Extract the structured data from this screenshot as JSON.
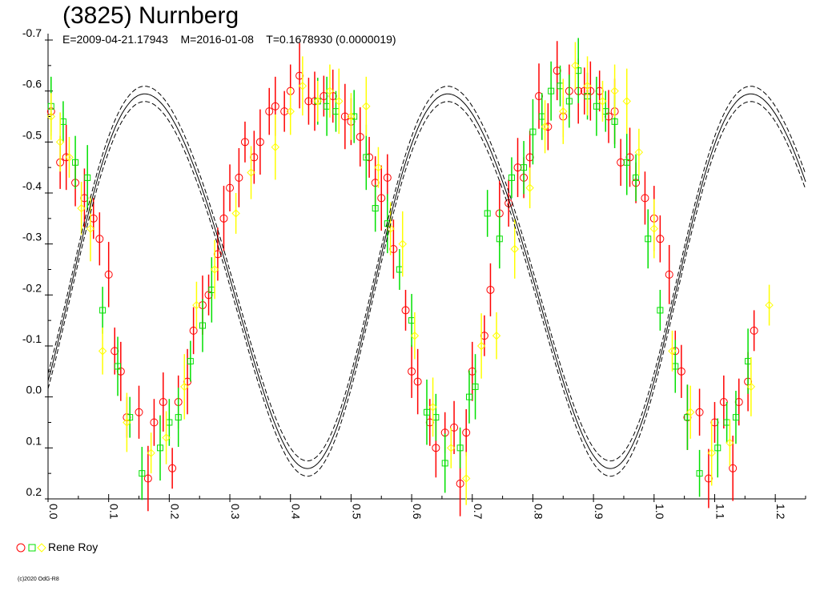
{
  "title": "(3825) Nurnberg",
  "subtitle": "E=2009-04-21.17943    M=2016-01-08    T=0.1678930 (0.0000019)",
  "legend": {
    "label": "Rene Roy"
  },
  "copyright": "(c)2020 OdG-R8",
  "colors": {
    "series1": "#ff0000",
    "series2": "#00e000",
    "series3": "#ffff00",
    "fit": "#000000"
  },
  "chart_data": {
    "type": "scatter",
    "xlim": [
      0.0,
      1.25
    ],
    "ylim": [
      -0.7,
      0.2
    ],
    "y_inverted": true,
    "x_ticks": [
      "0.0",
      "0.1",
      "0.2",
      "0.3",
      "0.4",
      "0.5",
      "0.6",
      "0.7",
      "0.8",
      "0.9",
      "1.0",
      "1.1",
      "1.2"
    ],
    "y_ticks": [
      "-0.7",
      "-0.6",
      "-0.5",
      "-0.4",
      "-0.3",
      "-0.2",
      "-0.1",
      "0.0",
      "0.1",
      "0.2"
    ],
    "series": [
      {
        "marker": "circle",
        "color": "#ff0000",
        "points": [
          [
            0.005,
            -0.56
          ],
          [
            0.02,
            -0.46
          ],
          [
            0.03,
            -0.47
          ],
          [
            0.045,
            -0.42
          ],
          [
            0.06,
            -0.39
          ],
          [
            0.075,
            -0.35
          ],
          [
            0.085,
            -0.31
          ],
          [
            0.1,
            -0.24
          ],
          [
            0.11,
            -0.09
          ],
          [
            0.12,
            -0.05
          ],
          [
            0.13,
            0.04
          ],
          [
            0.15,
            0.03
          ],
          [
            0.165,
            0.16
          ],
          [
            0.175,
            0.05
          ],
          [
            0.19,
            0.01
          ],
          [
            0.205,
            0.14
          ],
          [
            0.215,
            0.01
          ],
          [
            0.23,
            -0.03
          ],
          [
            0.24,
            -0.13
          ],
          [
            0.255,
            -0.18
          ],
          [
            0.265,
            -0.2
          ],
          [
            0.28,
            -0.28
          ],
          [
            0.29,
            -0.35
          ],
          [
            0.3,
            -0.41
          ],
          [
            0.315,
            -0.43
          ],
          [
            0.325,
            -0.5
          ],
          [
            0.34,
            -0.47
          ],
          [
            0.35,
            -0.5
          ],
          [
            0.365,
            -0.56
          ],
          [
            0.375,
            -0.57
          ],
          [
            0.39,
            -0.56
          ],
          [
            0.4,
            -0.6
          ],
          [
            0.415,
            -0.63
          ],
          [
            0.43,
            -0.58
          ],
          [
            0.44,
            -0.58
          ],
          [
            0.455,
            -0.59
          ],
          [
            0.47,
            -0.59
          ],
          [
            0.49,
            -0.55
          ],
          [
            0.5,
            -0.54
          ],
          [
            0.515,
            -0.51
          ],
          [
            0.53,
            -0.47
          ],
          [
            0.54,
            -0.42
          ],
          [
            0.55,
            -0.39
          ],
          [
            0.56,
            -0.43
          ],
          [
            0.57,
            -0.29
          ],
          [
            0.59,
            -0.17
          ],
          [
            0.6,
            -0.05
          ],
          [
            0.61,
            -0.03
          ],
          [
            0.63,
            0.05
          ],
          [
            0.64,
            0.1
          ],
          [
            0.655,
            0.07
          ],
          [
            0.67,
            0.06
          ],
          [
            0.68,
            0.17
          ],
          [
            0.69,
            0.07
          ],
          [
            0.7,
            -0.05
          ],
          [
            0.72,
            -0.12
          ],
          [
            0.73,
            -0.21
          ],
          [
            0.745,
            -0.36
          ],
          [
            0.76,
            -0.38
          ],
          [
            0.775,
            -0.45
          ],
          [
            0.785,
            -0.43
          ],
          [
            0.795,
            -0.47
          ],
          [
            0.81,
            -0.59
          ],
          [
            0.825,
            -0.53
          ],
          [
            0.84,
            -0.64
          ],
          [
            0.85,
            -0.55
          ],
          [
            0.86,
            -0.6
          ],
          [
            0.875,
            -0.6
          ],
          [
            0.885,
            -0.6
          ],
          [
            0.895,
            -0.6
          ],
          [
            0.91,
            -0.6
          ],
          [
            0.925,
            -0.55
          ],
          [
            0.935,
            -0.56
          ],
          [
            0.945,
            -0.46
          ],
          [
            0.96,
            -0.47
          ],
          [
            0.97,
            -0.42
          ],
          [
            0.985,
            -0.39
          ],
          [
            1.0,
            -0.35
          ],
          [
            1.01,
            -0.31
          ],
          [
            1.025,
            -0.24
          ],
          [
            1.035,
            -0.09
          ],
          [
            1.045,
            -0.05
          ],
          [
            1.055,
            0.04
          ],
          [
            1.075,
            0.03
          ],
          [
            1.09,
            0.16
          ],
          [
            1.1,
            0.05
          ],
          [
            1.115,
            0.01
          ],
          [
            1.13,
            0.14
          ],
          [
            1.14,
            0.01
          ],
          [
            1.155,
            -0.03
          ],
          [
            1.165,
            -0.13
          ]
        ]
      },
      {
        "marker": "square",
        "color": "#00e000",
        "points": [
          [
            0.005,
            -0.57
          ],
          [
            0.025,
            -0.54
          ],
          [
            0.045,
            -0.46
          ],
          [
            0.065,
            -0.43
          ],
          [
            0.09,
            -0.17
          ],
          [
            0.115,
            -0.06
          ],
          [
            0.135,
            0.04
          ],
          [
            0.155,
            0.15
          ],
          [
            0.185,
            0.1
          ],
          [
            0.2,
            0.05
          ],
          [
            0.215,
            0.04
          ],
          [
            0.235,
            -0.07
          ],
          [
            0.255,
            -0.14
          ],
          [
            0.27,
            -0.21
          ],
          [
            0.445,
            -0.58
          ],
          [
            0.46,
            -0.57
          ],
          [
            0.475,
            -0.56
          ],
          [
            0.505,
            -0.55
          ],
          [
            0.525,
            -0.47
          ],
          [
            0.54,
            -0.37
          ],
          [
            0.56,
            -0.34
          ],
          [
            0.58,
            -0.25
          ],
          [
            0.6,
            -0.15
          ],
          [
            0.625,
            0.03
          ],
          [
            0.64,
            0.04
          ],
          [
            0.655,
            0.13
          ],
          [
            0.68,
            0.1
          ],
          [
            0.695,
            0.0
          ],
          [
            0.705,
            -0.02
          ],
          [
            0.725,
            -0.36
          ],
          [
            0.745,
            -0.31
          ],
          [
            0.765,
            -0.43
          ],
          [
            0.785,
            -0.45
          ],
          [
            0.8,
            -0.52
          ],
          [
            0.815,
            -0.55
          ],
          [
            0.83,
            -0.6
          ],
          [
            0.845,
            -0.61
          ],
          [
            0.86,
            -0.58
          ],
          [
            0.875,
            -0.64
          ],
          [
            0.89,
            -0.59
          ],
          [
            0.905,
            -0.57
          ],
          [
            0.92,
            -0.56
          ],
          [
            0.935,
            -0.54
          ],
          [
            0.955,
            -0.46
          ],
          [
            0.97,
            -0.43
          ],
          [
            0.99,
            -0.31
          ],
          [
            1.01,
            -0.17
          ],
          [
            1.035,
            -0.06
          ],
          [
            1.055,
            0.04
          ],
          [
            1.075,
            0.15
          ],
          [
            1.105,
            0.1
          ],
          [
            1.12,
            0.05
          ],
          [
            1.135,
            0.04
          ],
          [
            1.155,
            -0.07
          ]
        ]
      },
      {
        "marker": "diamond",
        "color": "#ffff00",
        "points": [
          [
            0.005,
            -0.55
          ],
          [
            0.02,
            -0.5
          ],
          [
            0.035,
            -0.47
          ],
          [
            0.055,
            -0.37
          ],
          [
            0.07,
            -0.33
          ],
          [
            0.09,
            -0.09
          ],
          [
            0.13,
            0.05
          ],
          [
            0.17,
            0.11
          ],
          [
            0.195,
            0.08
          ],
          [
            0.225,
            -0.02
          ],
          [
            0.245,
            -0.18
          ],
          [
            0.275,
            -0.25
          ],
          [
            0.31,
            -0.36
          ],
          [
            0.335,
            -0.44
          ],
          [
            0.375,
            -0.49
          ],
          [
            0.4,
            -0.56
          ],
          [
            0.42,
            -0.61
          ],
          [
            0.445,
            -0.58
          ],
          [
            0.465,
            -0.6
          ],
          [
            0.48,
            -0.58
          ],
          [
            0.5,
            -0.55
          ],
          [
            0.525,
            -0.57
          ],
          [
            0.545,
            -0.45
          ],
          [
            0.565,
            -0.33
          ],
          [
            0.585,
            -0.3
          ],
          [
            0.605,
            -0.12
          ],
          [
            0.635,
            0.02
          ],
          [
            0.665,
            0.1
          ],
          [
            0.69,
            0.16
          ],
          [
            0.715,
            -0.1
          ],
          [
            0.74,
            -0.12
          ],
          [
            0.77,
            -0.29
          ],
          [
            0.795,
            -0.41
          ],
          [
            0.82,
            -0.53
          ],
          [
            0.85,
            -0.56
          ],
          [
            0.87,
            -0.65
          ],
          [
            0.89,
            -0.61
          ],
          [
            0.915,
            -0.58
          ],
          [
            0.935,
            -0.6
          ],
          [
            0.955,
            -0.58
          ],
          [
            0.975,
            -0.48
          ],
          [
            1.0,
            -0.33
          ],
          [
            1.03,
            -0.09
          ],
          [
            1.06,
            0.03
          ],
          [
            1.095,
            0.11
          ],
          [
            1.125,
            0.09
          ],
          [
            1.16,
            -0.02
          ],
          [
            1.19,
            -0.18
          ]
        ]
      }
    ],
    "fit_curve": {
      "style": "solid + dashed uncertainty band",
      "color": "#000000"
    }
  }
}
